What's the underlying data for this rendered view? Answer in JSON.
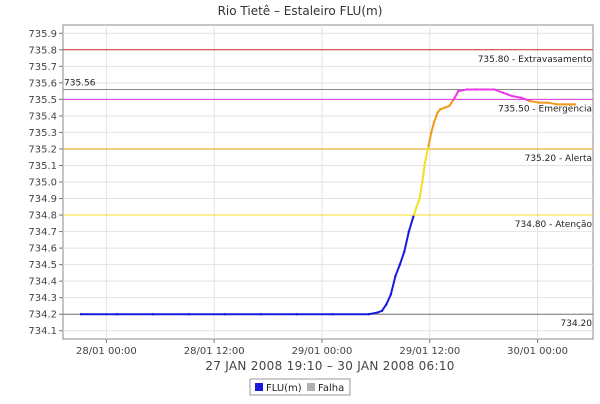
{
  "chart_data": {
    "type": "line",
    "title": "Rio Tietê – Estaleiro FLU(m)",
    "xlabel": "27 JAN 2008 19:10 – 30 JAN 2008 06:10",
    "ylabel": "",
    "x_range_hours": [
      0,
      59
    ],
    "ylim": [
      734.05,
      735.95
    ],
    "yticks": [
      "734.1",
      "734.2",
      "734.3",
      "734.4",
      "734.5",
      "734.6",
      "734.7",
      "734.8",
      "734.9",
      "735.0",
      "735.1",
      "735.2",
      "735.3",
      "735.4",
      "735.5",
      "735.6",
      "735.7",
      "735.8",
      "735.9"
    ],
    "xticks": [
      {
        "label": "28/01 00:00",
        "hour": 4.83
      },
      {
        "label": "28/01 12:00",
        "hour": 16.83
      },
      {
        "label": "29/01 00:00",
        "hour": 28.83
      },
      {
        "label": "29/01 12:00",
        "hour": 40.83
      },
      {
        "label": "30/01 00:00",
        "hour": 52.83
      }
    ],
    "grid": true,
    "reference_lines": [
      {
        "value": 735.8,
        "label": "735.80 - Extravasamento",
        "color": "#cc3333"
      },
      {
        "value": 735.56,
        "label": "735.56",
        "color": "#888888"
      },
      {
        "value": 735.5,
        "label": "735.50 - Emergência",
        "color": "#dd33dd"
      },
      {
        "value": 735.2,
        "label": "735.20 - Alerta",
        "color": "#e0a000"
      },
      {
        "value": 734.8,
        "label": "734.80 - Atenção",
        "color": "#f0e020"
      },
      {
        "value": 734.2,
        "label": "734.20",
        "color": "#777777"
      }
    ],
    "series": [
      {
        "name": "FLU(m)",
        "x_hours": [
          2.0,
          6.0,
          10.0,
          14.0,
          18.0,
          22.0,
          26.0,
          30.0,
          34.0,
          35.0,
          35.5,
          36.0,
          36.5,
          37.0,
          37.5,
          38.0,
          38.5,
          39.0,
          39.3,
          39.7,
          40.0,
          40.3,
          40.7,
          41.0,
          41.3,
          41.7,
          42.0,
          42.5,
          43.0,
          43.5,
          44.0,
          45.0,
          46.0,
          47.0,
          48.0,
          49.0,
          49.5,
          50.0,
          51.0,
          52.0,
          53.0,
          54.0,
          55.0,
          56.0,
          57.0
        ],
        "y": [
          734.2,
          734.2,
          734.2,
          734.2,
          734.2,
          734.2,
          734.2,
          734.2,
          734.2,
          734.21,
          734.22,
          734.26,
          734.32,
          734.43,
          734.5,
          734.58,
          734.7,
          734.79,
          734.84,
          734.9,
          735.0,
          735.12,
          735.22,
          735.3,
          735.36,
          735.42,
          735.44,
          735.45,
          735.46,
          735.5,
          735.55,
          735.56,
          735.56,
          735.56,
          735.56,
          735.54,
          735.53,
          735.52,
          735.51,
          735.49,
          735.48,
          735.48,
          735.47,
          735.47,
          735.47
        ]
      }
    ],
    "legend": {
      "placement": "bottom",
      "items": [
        {
          "label": "FLU(m)",
          "color": "#1a1adf"
        },
        {
          "label": "Falha",
          "color": "#b0b0b0"
        }
      ]
    },
    "level_colors": {
      "normal": "#1a1adf",
      "atencao": "#f0e020",
      "alerta": "#f29a1a",
      "emergencia": "#e83ce8"
    }
  }
}
